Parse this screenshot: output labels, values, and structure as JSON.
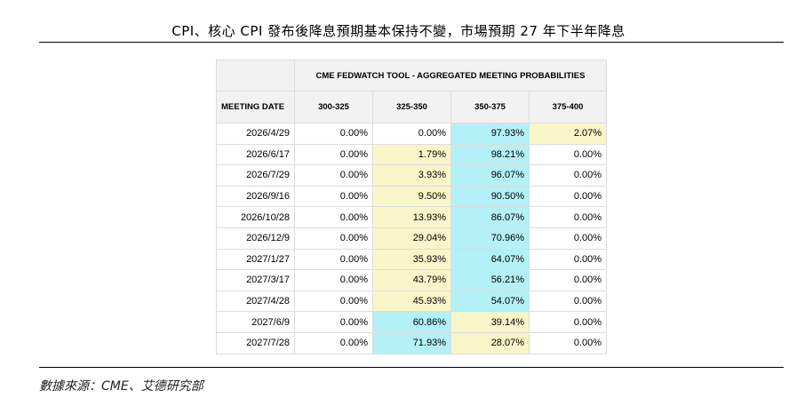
{
  "title": "CPI、核心 CPI 發布後降息預期基本保持不變，市場預期 27 年下半年降息",
  "source": "數據來源：CME、艾德研究部",
  "table": {
    "group_header": "CME FEDWATCH TOOL - AGGREGATED MEETING PROBABILITIES",
    "meeting_header": "MEETING DATE",
    "columns": [
      "300-325",
      "325-350",
      "350-375",
      "375-400"
    ],
    "rows": [
      {
        "date": "2026/4/29",
        "values": [
          "0.00%",
          "0.00%",
          "97.93%",
          "2.07%"
        ],
        "max": 2,
        "second": 3
      },
      {
        "date": "2026/6/17",
        "values": [
          "0.00%",
          "1.79%",
          "98.21%",
          "0.00%"
        ],
        "max": 2,
        "second": 1
      },
      {
        "date": "2026/7/29",
        "values": [
          "0.00%",
          "3.93%",
          "96.07%",
          "0.00%"
        ],
        "max": 2,
        "second": 1
      },
      {
        "date": "2026/9/16",
        "values": [
          "0.00%",
          "9.50%",
          "90.50%",
          "0.00%"
        ],
        "max": 2,
        "second": 1
      },
      {
        "date": "2026/10/28",
        "values": [
          "0.00%",
          "13.93%",
          "86.07%",
          "0.00%"
        ],
        "max": 2,
        "second": 1
      },
      {
        "date": "2026/12/9",
        "values": [
          "0.00%",
          "29.04%",
          "70.96%",
          "0.00%"
        ],
        "max": 2,
        "second": 1
      },
      {
        "date": "2027/1/27",
        "values": [
          "0.00%",
          "35.93%",
          "64.07%",
          "0.00%"
        ],
        "max": 2,
        "second": 1
      },
      {
        "date": "2027/3/17",
        "values": [
          "0.00%",
          "43.79%",
          "56.21%",
          "0.00%"
        ],
        "max": 2,
        "second": 1
      },
      {
        "date": "2027/4/28",
        "values": [
          "0.00%",
          "45.93%",
          "54.07%",
          "0.00%"
        ],
        "max": 2,
        "second": 1
      },
      {
        "date": "2027/6/9",
        "values": [
          "0.00%",
          "60.86%",
          "39.14%",
          "0.00%"
        ],
        "max": 1,
        "second": 2
      },
      {
        "date": "2027/7/28",
        "values": [
          "0.00%",
          "71.93%",
          "28.07%",
          "0.00%"
        ],
        "max": 1,
        "second": 2
      }
    ]
  },
  "colors": {
    "highest_probability": "#b3f0f7",
    "second_probability": "#f8f6c8",
    "header_background": "#f2f2f2"
  }
}
